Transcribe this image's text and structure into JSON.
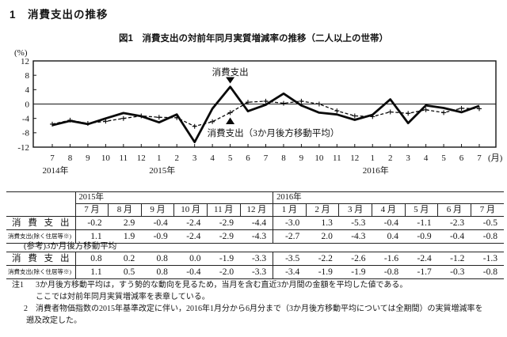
{
  "page_title": "1　消費支出の推移",
  "figure": {
    "title": "図1　消費支出の対前年同月実質増減率の推移（二人以上の世帯）",
    "unit_label": "(%)",
    "x_unit_label": "(月)",
    "annotation_solid": "消費支出",
    "annotation_dashed": "消費支出（3か月後方移動平均）"
  },
  "chart_data": {
    "type": "line",
    "title": "消費支出の対前年同月実質増減率の推移（二人以上の世帯）",
    "ylabel": "(%)",
    "ylim": [
      -12,
      12
    ],
    "yticks": [
      12,
      8,
      4,
      0,
      -4,
      -8,
      -12
    ],
    "grid": false,
    "x_months": [
      "7",
      "8",
      "9",
      "10",
      "11",
      "12",
      "1",
      "2",
      "3",
      "4",
      "5",
      "6",
      "7",
      "8",
      "9",
      "10",
      "11",
      "12",
      "1",
      "2",
      "3",
      "4",
      "5",
      "6",
      "7"
    ],
    "year_labels": [
      {
        "label": "2014年",
        "index": 0
      },
      {
        "label": "2015年",
        "index": 6
      },
      {
        "label": "2016年",
        "index": 18
      }
    ],
    "series": [
      {
        "name": "消費支出",
        "style": "solid",
        "values": [
          -5.9,
          -4.7,
          -5.6,
          -4.0,
          -2.5,
          -3.4,
          -5.1,
          -2.9,
          -10.6,
          -1.3,
          4.8,
          -2.0,
          -0.2,
          2.9,
          -0.4,
          -2.4,
          -2.9,
          -4.4,
          -3.0,
          1.3,
          -5.3,
          -0.4,
          -1.1,
          -2.3,
          -0.5
        ]
      },
      {
        "name": "消費支出（3か月後方移動平均）",
        "style": "dashed-plus-markers",
        "values": [
          -5.6,
          -4.5,
          -5.4,
          -4.8,
          -4.0,
          -3.3,
          -3.7,
          -3.8,
          -6.2,
          -4.9,
          -2.4,
          0.5,
          0.8,
          0.2,
          0.8,
          0.0,
          -1.9,
          -3.3,
          -3.5,
          -2.2,
          -2.6,
          -1.6,
          -2.4,
          -1.2,
          -1.3
        ]
      }
    ]
  },
  "table1": {
    "year_headers": [
      {
        "label": "2015年",
        "colspan": 6
      },
      {
        "label": "2016年",
        "colspan": 7
      }
    ],
    "month_headers": [
      "7 月",
      "8 月",
      "9 月",
      "10 月",
      "11 月",
      "12 月",
      "1 月",
      "2 月",
      "3 月",
      "4 月",
      "5 月",
      "6 月",
      "7 月"
    ],
    "rows": [
      {
        "label": "消費支出",
        "values": [
          "-0.2",
          "2.9",
          "-0.4",
          "-2.4",
          "-2.9",
          "-4.4",
          "-3.0",
          "1.3",
          "-5.3",
          "-0.4",
          "-1.1",
          "-2.3",
          "-0.5"
        ]
      },
      {
        "label": "消費支出(除く住居等※)",
        "values": [
          "1.1",
          "1.9",
          "-0.9",
          "-2.4",
          "-2.9",
          "-4.3",
          "-2.7",
          "2.0",
          "-4.3",
          "0.4",
          "-0.9",
          "-0.4",
          "-0.8"
        ]
      }
    ]
  },
  "table2": {
    "caption": "(参考)3か月後方移動平均",
    "rows": [
      {
        "label": "消費支出",
        "values": [
          "0.8",
          "0.2",
          "0.8",
          "0.0",
          "-1.9",
          "-3.3",
          "-3.5",
          "-2.2",
          "-2.6",
          "-1.6",
          "-2.4",
          "-1.2",
          "-1.3"
        ]
      },
      {
        "label": "消費支出(除く住居等※)",
        "values": [
          "1.1",
          "0.5",
          "0.8",
          "-0.4",
          "-2.0",
          "-3.3",
          "-3.4",
          "-1.9",
          "-1.9",
          "-0.8",
          "-1.7",
          "-0.3",
          "-0.8"
        ]
      }
    ]
  },
  "notes": [
    {
      "marker": "注1",
      "text": "3か月後方移動平均は，すう勢的な動向を見るため，当月を含む直近3か月間の金額を平均した値である。"
    },
    {
      "marker": "",
      "text": "ここでは対前年同月実質増減率を表章している。"
    },
    {
      "marker": "2",
      "text": "消費者物価指数の2015年基準改定に伴い，2016年1月分から6月分まで（3か月後方移動平均については全期間）の実質増減率を"
    },
    {
      "marker": "",
      "text": "遡及改定した。"
    }
  ]
}
